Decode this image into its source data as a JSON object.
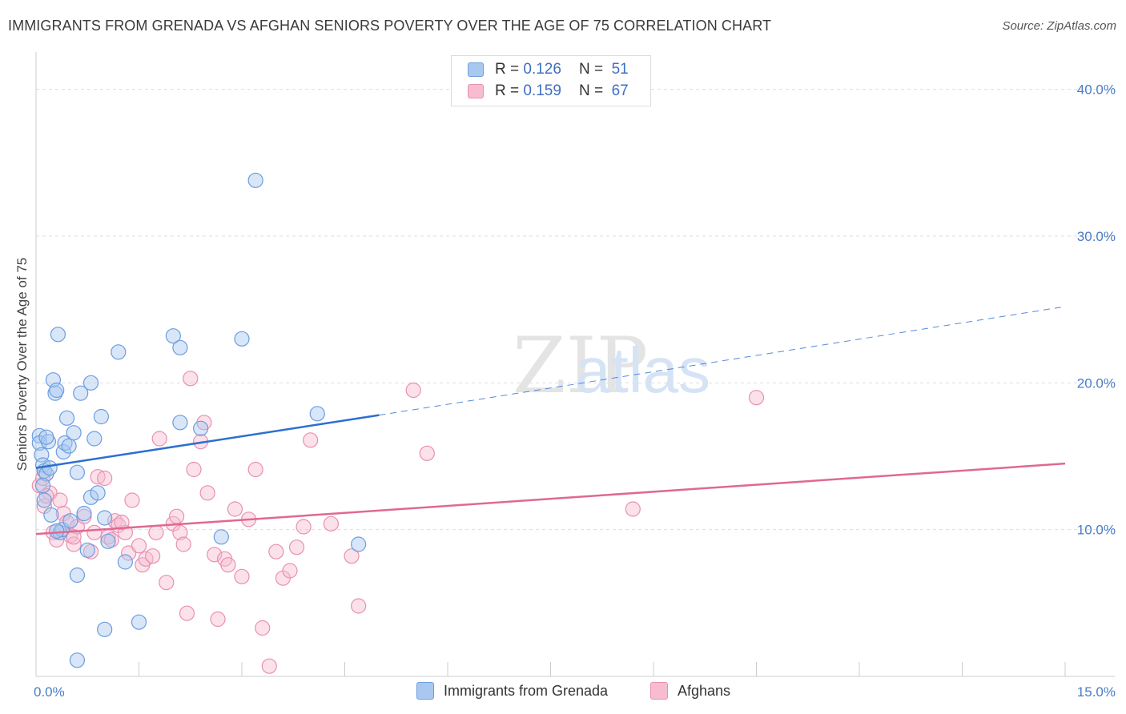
{
  "title": "IMMIGRANTS FROM GRENADA VS AFGHAN SENIORS POVERTY OVER THE AGE OF 75 CORRELATION CHART",
  "source": "Source: ZipAtlas.com",
  "watermark": {
    "zip": "ZIP",
    "atlas": "atlas"
  },
  "legend": {
    "series1": {
      "r_label": "R =",
      "r_value": "0.126",
      "n_label": "N =",
      "n_value": "51"
    },
    "series2": {
      "r_label": "R =",
      "r_value": "0.159",
      "n_label": "N =",
      "n_value": "67"
    }
  },
  "bottom_legend": {
    "series1": "Immigrants from Grenada",
    "series2": "Afghans"
  },
  "colors": {
    "grenada_fill": "#a9c8f0",
    "grenada_stroke": "#6b9de0",
    "grenada_line": "#2d6fd0",
    "afghan_fill": "#f7bcd0",
    "afghan_stroke": "#ea8fb0",
    "afghan_line": "#e06893",
    "tick": "#4a7cc8",
    "grid": "#dddddd"
  },
  "chart_data": {
    "type": "scatter",
    "title": "IMMIGRANTS FROM GRENADA VS AFGHAN SENIORS POVERTY OVER THE AGE OF 75 CORRELATION CHART",
    "xlabel": "",
    "ylabel": "Seniors Poverty Over the Age of 75",
    "xlim": [
      0,
      15
    ],
    "ylim": [
      0,
      42
    ],
    "x_tick_labels": [
      "0.0%",
      "15.0%"
    ],
    "y_ticks": [
      10,
      20,
      30,
      40
    ],
    "y_tick_labels": [
      "10.0%",
      "20.0%",
      "30.0%",
      "40.0%"
    ],
    "series": [
      {
        "name": "Immigrants from Grenada",
        "r": 0.126,
        "n": 51,
        "trend": {
          "x0": 0,
          "y0": 14.2,
          "x1": 5.0,
          "y1": 17.8,
          "dash_x1": 15.0,
          "dash_y1": 25.2
        },
        "points": [
          [
            0.05,
            16.4
          ],
          [
            0.05,
            15.9
          ],
          [
            0.08,
            15.1
          ],
          [
            0.1,
            14.4
          ],
          [
            0.12,
            14.0
          ],
          [
            0.15,
            13.8
          ],
          [
            0.18,
            16.0
          ],
          [
            0.2,
            14.2
          ],
          [
            0.22,
            11.0
          ],
          [
            0.12,
            12.0
          ],
          [
            0.25,
            20.2
          ],
          [
            0.28,
            19.3
          ],
          [
            0.3,
            19.5
          ],
          [
            0.32,
            23.3
          ],
          [
            0.35,
            9.8
          ],
          [
            0.38,
            10.0
          ],
          [
            0.4,
            15.3
          ],
          [
            0.42,
            15.9
          ],
          [
            0.45,
            17.6
          ],
          [
            0.48,
            15.7
          ],
          [
            0.5,
            10.6
          ],
          [
            0.55,
            16.6
          ],
          [
            0.6,
            13.9
          ],
          [
            0.65,
            19.3
          ],
          [
            0.7,
            11.1
          ],
          [
            0.75,
            8.6
          ],
          [
            0.8,
            12.2
          ],
          [
            0.8,
            20.0
          ],
          [
            0.85,
            16.2
          ],
          [
            0.9,
            12.5
          ],
          [
            0.95,
            17.7
          ],
          [
            1.0,
            10.8
          ],
          [
            1.05,
            9.2
          ],
          [
            1.2,
            22.1
          ],
          [
            1.3,
            7.8
          ],
          [
            1.5,
            3.7
          ],
          [
            2.0,
            23.2
          ],
          [
            2.1,
            22.4
          ],
          [
            2.1,
            17.3
          ],
          [
            2.4,
            16.9
          ],
          [
            2.7,
            9.5
          ],
          [
            3.0,
            23.0
          ],
          [
            3.2,
            33.8
          ],
          [
            4.1,
            17.9
          ],
          [
            4.7,
            9.0
          ],
          [
            0.6,
            6.9
          ],
          [
            1.0,
            3.2
          ],
          [
            0.6,
            1.1
          ],
          [
            0.15,
            16.3
          ],
          [
            0.3,
            9.9
          ],
          [
            0.1,
            13.0
          ]
        ]
      },
      {
        "name": "Afghans",
        "r": 0.159,
        "n": 67,
        "trend": {
          "x0": 0,
          "y0": 9.7,
          "x1": 15.0,
          "y1": 14.5
        },
        "points": [
          [
            0.05,
            13.0
          ],
          [
            0.1,
            13.5
          ],
          [
            0.12,
            11.6
          ],
          [
            0.2,
            12.5
          ],
          [
            0.25,
            9.8
          ],
          [
            0.3,
            9.3
          ],
          [
            0.35,
            12.0
          ],
          [
            0.4,
            11.1
          ],
          [
            0.45,
            10.5
          ],
          [
            0.5,
            9.6
          ],
          [
            0.55,
            9.0
          ],
          [
            0.6,
            10.2
          ],
          [
            0.7,
            10.9
          ],
          [
            0.8,
            8.5
          ],
          [
            0.85,
            9.8
          ],
          [
            0.9,
            13.6
          ],
          [
            1.0,
            13.5
          ],
          [
            1.05,
            9.5
          ],
          [
            1.1,
            9.3
          ],
          [
            1.15,
            10.6
          ],
          [
            1.2,
            10.3
          ],
          [
            1.3,
            9.8
          ],
          [
            1.35,
            8.4
          ],
          [
            1.4,
            12.0
          ],
          [
            1.5,
            8.9
          ],
          [
            1.55,
            7.6
          ],
          [
            1.6,
            8.0
          ],
          [
            1.7,
            8.2
          ],
          [
            1.75,
            9.8
          ],
          [
            1.8,
            16.2
          ],
          [
            1.9,
            6.4
          ],
          [
            2.0,
            10.4
          ],
          [
            2.1,
            9.8
          ],
          [
            2.15,
            9.0
          ],
          [
            2.2,
            4.3
          ],
          [
            2.25,
            20.3
          ],
          [
            2.3,
            14.1
          ],
          [
            2.4,
            16.0
          ],
          [
            2.45,
            17.3
          ],
          [
            2.5,
            12.5
          ],
          [
            2.6,
            8.3
          ],
          [
            2.65,
            3.9
          ],
          [
            2.75,
            8.0
          ],
          [
            2.8,
            7.6
          ],
          [
            2.9,
            11.4
          ],
          [
            3.0,
            6.8
          ],
          [
            3.1,
            10.7
          ],
          [
            3.2,
            14.1
          ],
          [
            3.3,
            3.3
          ],
          [
            3.4,
            0.7
          ],
          [
            3.5,
            8.5
          ],
          [
            3.6,
            6.7
          ],
          [
            3.7,
            7.2
          ],
          [
            3.8,
            8.8
          ],
          [
            3.9,
            10.2
          ],
          [
            4.0,
            16.1
          ],
          [
            4.3,
            10.4
          ],
          [
            4.6,
            8.2
          ],
          [
            4.7,
            4.8
          ],
          [
            5.5,
            19.5
          ],
          [
            5.7,
            15.2
          ],
          [
            8.7,
            11.4
          ],
          [
            10.5,
            19.0
          ],
          [
            0.15,
            12.3
          ],
          [
            0.55,
            9.5
          ],
          [
            1.25,
            10.5
          ],
          [
            2.05,
            10.9
          ]
        ]
      }
    ]
  }
}
